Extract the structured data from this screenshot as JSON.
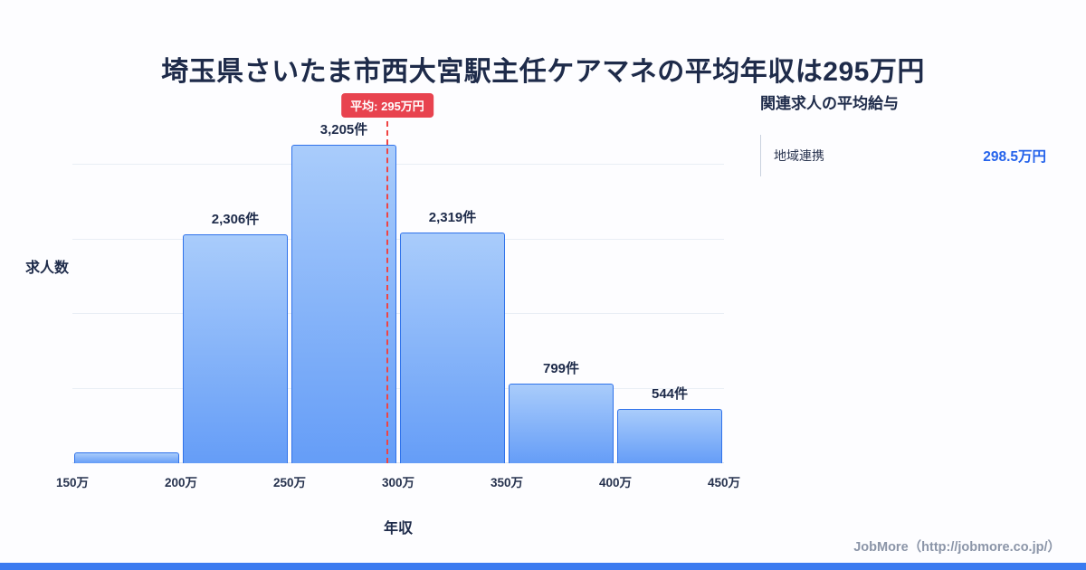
{
  "title": "埼玉県さいたま市西大宮駅主任ケアマネの平均年収は295万円",
  "chart_data": {
    "type": "bar",
    "title": "埼玉県さいたま市西大宮駅主任ケアマネの平均年収は295万円",
    "xlabel": "年収",
    "ylabel": "求人数",
    "x_ticks": [
      "150万",
      "200万",
      "250万",
      "300万",
      "350万",
      "400万",
      "450万"
    ],
    "x_range": [
      150,
      450
    ],
    "ylim": [
      0,
      3750
    ],
    "grid": true,
    "legend": false,
    "bins": [
      {
        "range": "150万-200万",
        "value": 110,
        "label": ""
      },
      {
        "range": "200万-250万",
        "value": 2306,
        "label": "2,306件"
      },
      {
        "range": "250万-300万",
        "value": 3205,
        "label": "3,205件"
      },
      {
        "range": "300万-350万",
        "value": 2319,
        "label": "2,319件"
      },
      {
        "range": "350万-400万",
        "value": 799,
        "label": "799件"
      },
      {
        "range": "400万-450万",
        "value": 544,
        "label": "544件"
      }
    ],
    "mean_line": {
      "label": "平均: 295万円",
      "value": 295
    }
  },
  "side_panel": {
    "heading": "関連求人の平均給与",
    "rows": [
      {
        "label": "地域連携",
        "value": "298.5万円"
      }
    ]
  },
  "footer": {
    "credit": "JobMore（http://jobmore.co.jp/）"
  },
  "colors": {
    "accent_blue": "#3b7bf0",
    "bar_gradient_top": "#a9ccfb",
    "bar_gradient_bottom": "#659df7",
    "bar_border": "#2f72ea",
    "mean_line_red": "#ef4444",
    "badge_red": "#e8434f",
    "value_blue": "#2563eb",
    "title_navy": "#1e2b4a"
  }
}
